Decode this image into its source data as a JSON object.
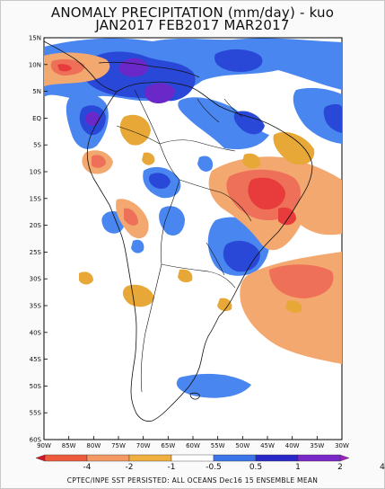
{
  "title_line1": "ANOMALY PRECIPITATION (mm/day) - kuo",
  "title_line2": "JAN2017 FEB2017 MAR2017",
  "footer": "CPTEC/INPE SST PERSISTED: ALL OCEANS Dec16 15 ENSEMBLE MEAN",
  "lat_labels": [
    "15N",
    "10N",
    "5N",
    "EQ",
    "5S",
    "10S",
    "15S",
    "20S",
    "25S",
    "30S",
    "35S",
    "40S",
    "45S",
    "50S",
    "55S",
    "60S"
  ],
  "lon_labels": [
    "90W",
    "85W",
    "80W",
    "75W",
    "70W",
    "65W",
    "60W",
    "55W",
    "50W",
    "45W",
    "40W",
    "35W",
    "30W"
  ],
  "legend": {
    "labels": [
      "-4",
      "-2",
      "-1",
      "-0.5",
      "0.5",
      "1",
      "2",
      "4"
    ],
    "colors": [
      "#d81428",
      "#ee5a3c",
      "#f39a64",
      "#f0b040",
      "#ffffff",
      "#3b73e8",
      "#2828c8",
      "#7a28c8",
      "#a020c0"
    ]
  },
  "colors": {
    "neg_light": "#f3a870",
    "neg_med": "#ee7058",
    "neg_dark": "#e83c3c",
    "neg_gold": "#e8a838",
    "pos_light": "#4a86f0",
    "pos_med": "#2a48d8",
    "pos_dark": "#6a28c8"
  }
}
